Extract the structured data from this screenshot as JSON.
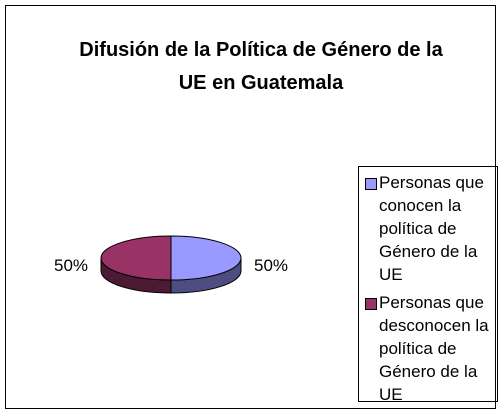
{
  "chart_data": {
    "type": "pie",
    "title": "Difusión de la Política de Género de la UE en Guatemala",
    "categories": [
      "Personas que conocen la política de Género de la UE",
      "Personas que desconocen la política de Género de la UE"
    ],
    "values": [
      50,
      50
    ],
    "value_labels": [
      "50%",
      "50%"
    ],
    "colors": [
      "#9999ff",
      "#993366"
    ],
    "legend": "right"
  }
}
